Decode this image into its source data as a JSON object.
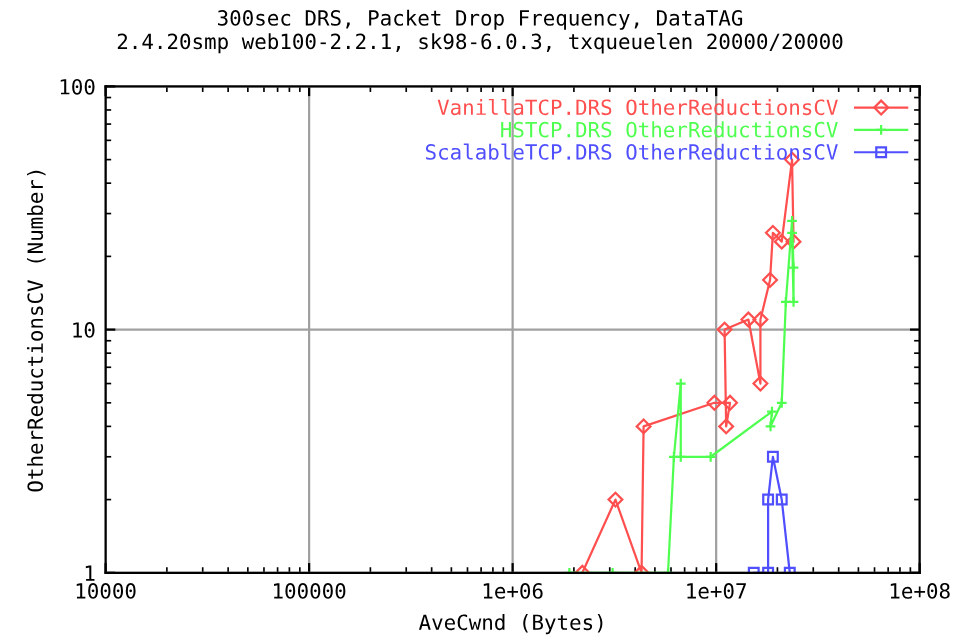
{
  "chart_data": {
    "type": "line",
    "title": "300sec DRS, Packet Drop Frequency, DataTAG",
    "subtitle": "2.4.20smp web100-2.2.1, sk98-6.0.3, txqueuelen 20000/20000",
    "xlabel": "AveCwnd (Bytes)",
    "ylabel": "OtherReductionsCV (Number)",
    "log": "xy",
    "xlim": [
      10000,
      100000000
    ],
    "ylim": [
      1,
      100
    ],
    "xticks": [
      10000,
      100000,
      {
        "value": 1000000,
        "label": "1e+06"
      },
      {
        "value": 10000000,
        "label": "1e+07"
      },
      {
        "value": 100000000,
        "label": "1e+08"
      }
    ],
    "yticks": [
      1,
      10,
      100
    ],
    "grid": true,
    "legend": "top right",
    "series": [
      {
        "name": "VanillaTCP.DRS OtherReductionsCV",
        "color": "#ff4f4f",
        "marker": "diamond",
        "x": [
          2200000,
          3200000,
          4300000,
          4400000,
          9800000,
          11700000,
          11200000,
          11000000,
          14400000,
          16500000,
          16500000,
          18400000,
          19000000,
          21000000,
          23600000,
          24000000
        ],
        "values": [
          1,
          2,
          1,
          4,
          5,
          5,
          4,
          10,
          11,
          6,
          11,
          16,
          25,
          23,
          50,
          23
        ]
      },
      {
        "name": "HSTCP.DRS OtherReductionsCV",
        "color": "#4fff4f",
        "marker": "cross",
        "x": [
          1900000,
          3100000,
          5800000,
          6200000,
          6700000,
          6700000,
          9400000,
          18800000,
          18500000,
          21000000,
          22000000,
          23600000,
          24000000,
          24000000,
          23600000
        ],
        "values": [
          1,
          1,
          1,
          3,
          6,
          3,
          3,
          4.6,
          4,
          5,
          13,
          28,
          18,
          13,
          25
        ]
      },
      {
        "name": "ScalableTCP.DRS OtherReductionsCV",
        "color": "#4f4fff",
        "marker": "square",
        "x": [
          15300000,
          18000000,
          18000000,
          19000000,
          21000000,
          23000000
        ],
        "values": [
          1,
          1,
          2,
          3,
          2,
          1
        ]
      }
    ]
  }
}
